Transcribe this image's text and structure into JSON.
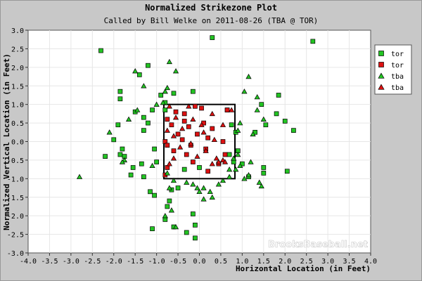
{
  "chart_data": {
    "type": "scatter",
    "title": "Normalized Strikezone Plot",
    "subtitle": "Called by Bill Welke on 2011-08-26 (TBA @ TOR)",
    "xlabel": "Horizontal Location (in Feet)",
    "ylabel": "Normalized Vertical Location (in Feet)",
    "xlim": [
      -4.0,
      4.0
    ],
    "ylim": [
      -3.0,
      3.0
    ],
    "x_ticks": [
      "-4.0",
      "-3.5",
      "-3.0",
      "-2.5",
      "-2.0",
      "-1.5",
      "-1.0",
      "-0.5",
      "0.0",
      "0.5",
      "1.0",
      "1.5",
      "2.0",
      "2.5",
      "3.0",
      "3.5",
      "4.0"
    ],
    "y_ticks": [
      "3.0",
      "2.5",
      "2.0",
      "1.5",
      "1.0",
      "0.5",
      "0.0",
      "-0.5",
      "-1.0",
      "-1.5",
      "-2.0",
      "-2.5",
      "-3.0"
    ],
    "grid": true,
    "legend_position": "top-right",
    "watermark": "BrooksBaseball.net",
    "strike_zone": {
      "x": [
        -0.83,
        0.83
      ],
      "y": [
        -1.0,
        1.0
      ]
    },
    "colors": {
      "ball": "#22c422",
      "strike": "#dd1111",
      "background": "#c8c8c8",
      "plot": "#ffffff"
    },
    "series": [
      {
        "name": "tor",
        "shape": "square",
        "call": "ball",
        "points": [
          [
            -2.3,
            2.45
          ],
          [
            -1.85,
            1.35
          ],
          [
            -1.85,
            1.15
          ],
          [
            -1.9,
            0.45
          ],
          [
            -2.0,
            0.05
          ],
          [
            -1.8,
            -0.2
          ],
          [
            -2.2,
            -0.4
          ],
          [
            -1.85,
            -0.35
          ],
          [
            -1.75,
            -0.4
          ],
          [
            -1.55,
            -0.7
          ],
          [
            -1.6,
            -0.9
          ],
          [
            -1.5,
            0.8
          ],
          [
            -1.3,
            0.65
          ],
          [
            -1.1,
            0.85
          ],
          [
            -1.2,
            0.5
          ],
          [
            -1.3,
            0.3
          ],
          [
            -1.05,
            -0.2
          ],
          [
            -1.35,
            -0.6
          ],
          [
            -1.0,
            -0.55
          ],
          [
            -1.3,
            -0.95
          ],
          [
            -1.15,
            -1.35
          ],
          [
            -1.05,
            -1.45
          ],
          [
            -1.1,
            -2.35
          ],
          [
            -1.4,
            1.8
          ],
          [
            -1.2,
            2.05
          ],
          [
            -0.9,
            1.25
          ],
          [
            -0.8,
            1.05
          ],
          [
            -0.8,
            0.85
          ],
          [
            -0.6,
            1.3
          ],
          [
            -0.15,
            1.35
          ],
          [
            -0.5,
            -1.25
          ],
          [
            -0.65,
            -1.3
          ],
          [
            -0.7,
            -1.6
          ],
          [
            -0.75,
            -1.75
          ],
          [
            -0.8,
            -2.1
          ],
          [
            -0.6,
            -2.3
          ],
          [
            -0.15,
            -1.95
          ],
          [
            -0.1,
            -2.25
          ],
          [
            -0.3,
            -2.45
          ],
          [
            -0.1,
            -2.6
          ],
          [
            0.3,
            2.8
          ],
          [
            0.65,
            0.85
          ],
          [
            0.75,
            0.45
          ],
          [
            0.85,
            0.25
          ],
          [
            0.9,
            -0.25
          ],
          [
            0.7,
            -0.35
          ],
          [
            0.8,
            -0.55
          ],
          [
            1.0,
            -0.6
          ],
          [
            1.5,
            -0.7
          ],
          [
            1.5,
            -0.85
          ],
          [
            1.15,
            -0.95
          ],
          [
            1.3,
            0.25
          ],
          [
            1.55,
            0.45
          ],
          [
            1.8,
            0.75
          ],
          [
            2.05,
            -0.8
          ],
          [
            2.2,
            0.3
          ],
          [
            1.85,
            1.25
          ],
          [
            2.0,
            0.55
          ],
          [
            2.65,
            2.7
          ],
          [
            1.45,
            1.0
          ],
          [
            -0.35,
            -0.75
          ],
          [
            0.0,
            -0.7
          ]
        ]
      },
      {
        "name": "tor",
        "shape": "square",
        "call": "strike",
        "points": [
          [
            -0.75,
            0.6
          ],
          [
            -0.65,
            0.45
          ],
          [
            -0.55,
            0.8
          ],
          [
            -0.35,
            0.55
          ],
          [
            -0.25,
            0.4
          ],
          [
            -0.5,
            0.2
          ],
          [
            -0.8,
            0.0
          ],
          [
            -0.75,
            -0.1
          ],
          [
            -0.6,
            -0.25
          ],
          [
            -0.4,
            0.05
          ],
          [
            -0.2,
            -0.1
          ],
          [
            -0.05,
            0.2
          ],
          [
            0.1,
            0.5
          ],
          [
            0.05,
            0.9
          ],
          [
            -0.1,
            0.95
          ],
          [
            0.2,
            0.1
          ],
          [
            0.3,
            0.35
          ],
          [
            0.55,
            0.0
          ],
          [
            0.6,
            -0.35
          ],
          [
            0.45,
            -0.6
          ],
          [
            0.2,
            -0.8
          ],
          [
            0.15,
            -0.2
          ],
          [
            -0.15,
            -0.55
          ],
          [
            -0.3,
            -0.35
          ],
          [
            -0.75,
            -0.7
          ],
          [
            -0.8,
            -0.9
          ],
          [
            0.65,
            0.85
          ],
          [
            -0.35,
            0.75
          ]
        ]
      },
      {
        "name": "tba",
        "shape": "triangle",
        "call": "ball",
        "points": [
          [
            -2.8,
            -0.95
          ],
          [
            -2.1,
            0.25
          ],
          [
            -1.75,
            -0.5
          ],
          [
            -1.65,
            0.6
          ],
          [
            -1.5,
            1.9
          ],
          [
            -1.3,
            1.5
          ],
          [
            -0.8,
            1.35
          ],
          [
            -0.75,
            1.45
          ],
          [
            -0.7,
            2.15
          ],
          [
            -0.55,
            1.9
          ],
          [
            -0.85,
            1.05
          ],
          [
            -0.75,
            -0.85
          ],
          [
            -0.7,
            -1.25
          ],
          [
            -0.8,
            -2.0
          ],
          [
            -0.65,
            -1.85
          ],
          [
            -0.55,
            -2.3
          ],
          [
            -0.15,
            -1.15
          ],
          [
            -0.05,
            -1.25
          ],
          [
            0.1,
            -1.55
          ],
          [
            0.1,
            -1.25
          ],
          [
            0.25,
            -1.35
          ],
          [
            0.3,
            -1.5
          ],
          [
            0.45,
            -1.15
          ],
          [
            0.55,
            -1.05
          ],
          [
            0.7,
            -0.95
          ],
          [
            0.85,
            -0.75
          ],
          [
            0.95,
            -0.65
          ],
          [
            0.7,
            -0.75
          ],
          [
            0.9,
            -0.35
          ],
          [
            0.8,
            -0.45
          ],
          [
            1.05,
            -1.0
          ],
          [
            1.15,
            -0.9
          ],
          [
            1.2,
            -0.55
          ],
          [
            1.4,
            -1.1
          ],
          [
            1.45,
            -1.2
          ],
          [
            1.5,
            0.6
          ],
          [
            1.25,
            0.2
          ],
          [
            1.35,
            0.85
          ],
          [
            1.35,
            1.2
          ],
          [
            1.15,
            1.75
          ],
          [
            1.05,
            1.35
          ],
          [
            0.95,
            0.5
          ],
          [
            0.9,
            0.3
          ],
          [
            -1.45,
            0.85
          ],
          [
            -0.6,
            -1.05
          ],
          [
            -0.3,
            -1.1
          ],
          [
            0.0,
            -1.35
          ],
          [
            -1.8,
            -0.55
          ],
          [
            -1.1,
            -0.65
          ],
          [
            -1.0,
            1.0
          ]
        ]
      },
      {
        "name": "tba",
        "shape": "triangle",
        "call": "strike",
        "points": [
          [
            -0.7,
            0.95
          ],
          [
            -0.55,
            0.65
          ],
          [
            -0.75,
            0.3
          ],
          [
            -0.6,
            0.15
          ],
          [
            -0.4,
            0.35
          ],
          [
            -0.15,
            0.6
          ],
          [
            0.05,
            0.45
          ],
          [
            0.3,
            0.75
          ],
          [
            0.55,
            0.45
          ],
          [
            0.35,
            0.05
          ],
          [
            0.15,
            -0.25
          ],
          [
            -0.2,
            -0.05
          ],
          [
            -0.45,
            -0.15
          ],
          [
            -0.6,
            -0.45
          ],
          [
            -0.7,
            -0.6
          ],
          [
            0.4,
            -0.45
          ],
          [
            0.55,
            -0.5
          ],
          [
            0.6,
            -0.55
          ],
          [
            0.45,
            -0.55
          ],
          [
            0.75,
            0.85
          ],
          [
            -0.25,
            0.95
          ],
          [
            0.1,
            0.25
          ],
          [
            -0.05,
            -0.4
          ],
          [
            0.3,
            -0.6
          ]
        ]
      }
    ]
  }
}
